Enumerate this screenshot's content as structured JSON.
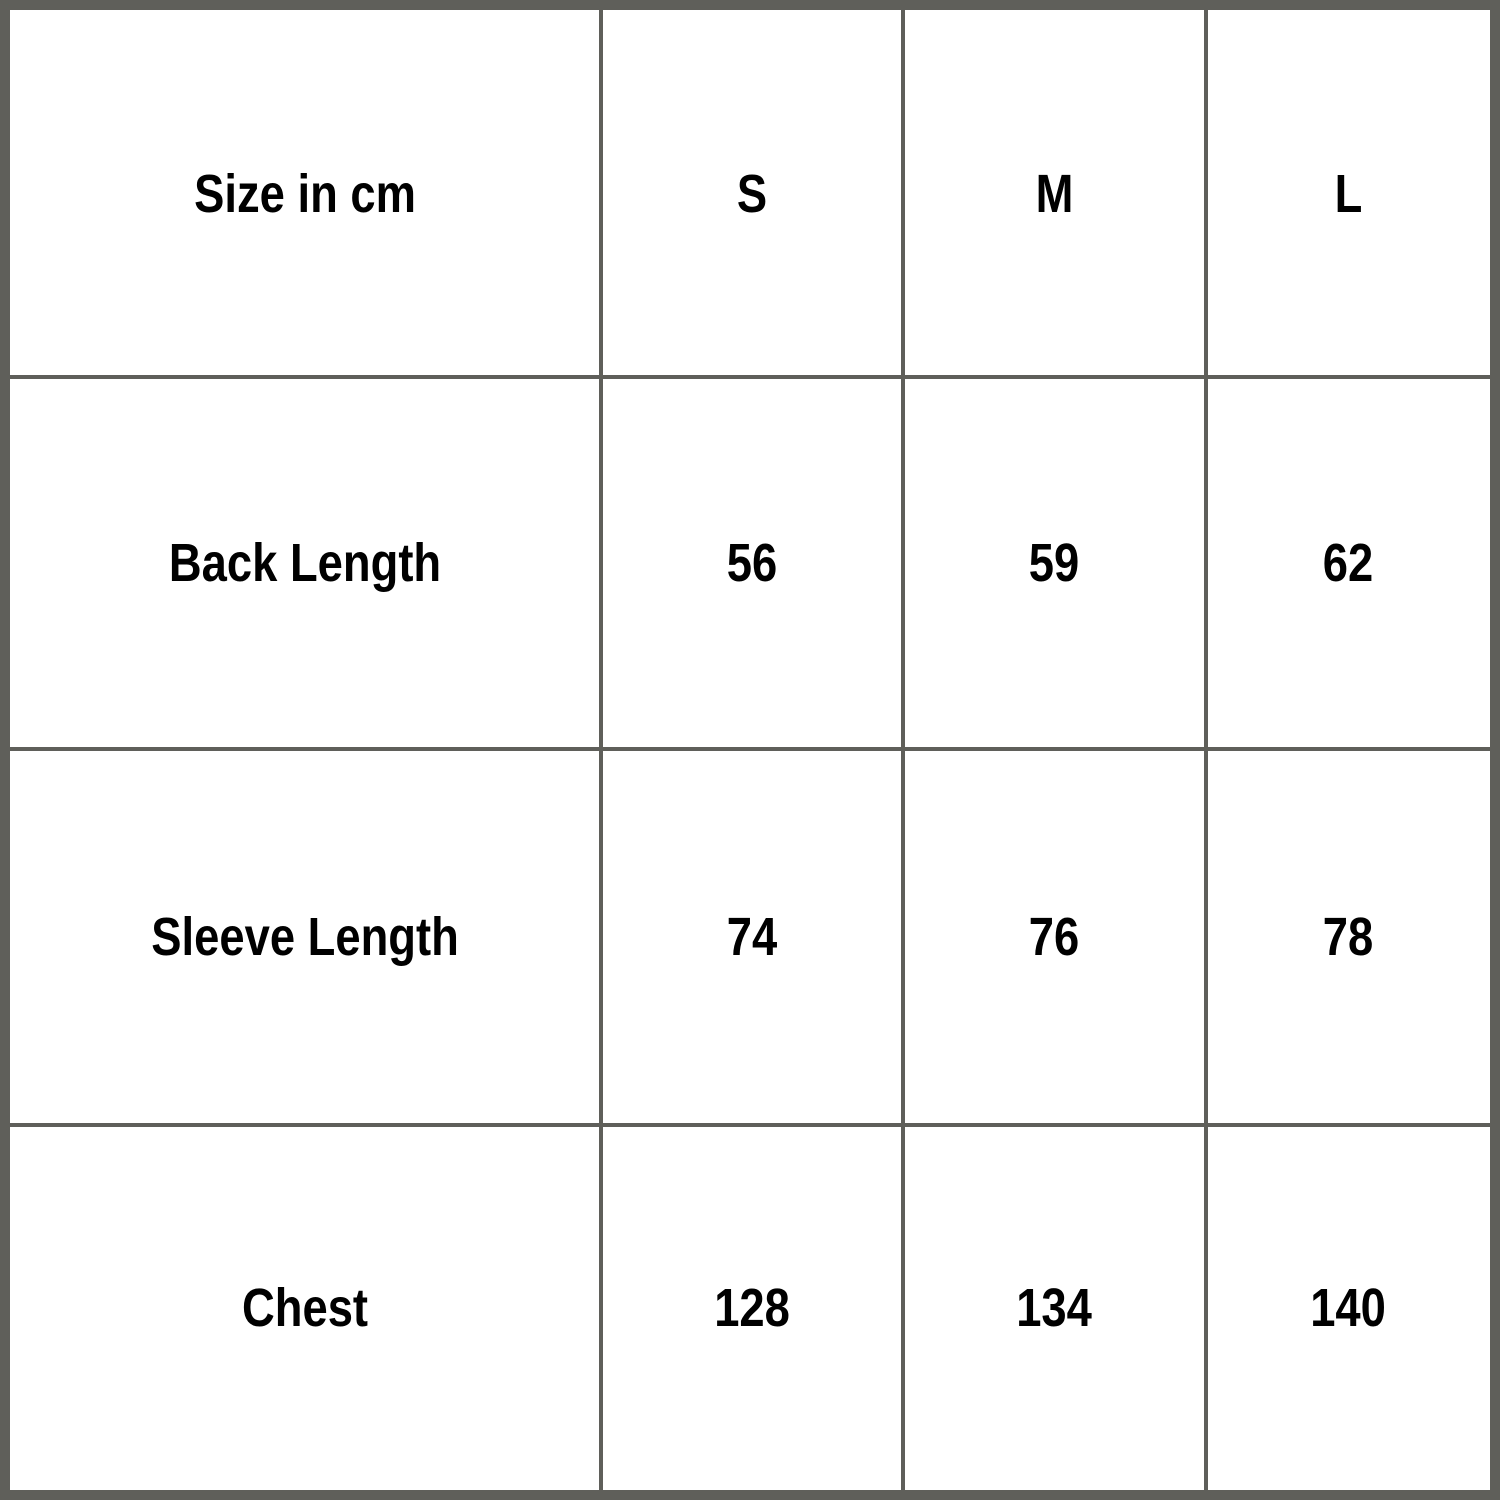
{
  "table": {
    "header": [
      "Size in cm",
      "S",
      "M",
      "L"
    ],
    "rows": [
      [
        "Back Length",
        "56",
        "59",
        "62"
      ],
      [
        "Sleeve Length",
        "74",
        "76",
        "78"
      ],
      [
        "Chest",
        "128",
        "134",
        "140"
      ]
    ]
  },
  "colors": {
    "grid": "#5f5f5a",
    "background": "#ffffff",
    "text": "#000000"
  }
}
